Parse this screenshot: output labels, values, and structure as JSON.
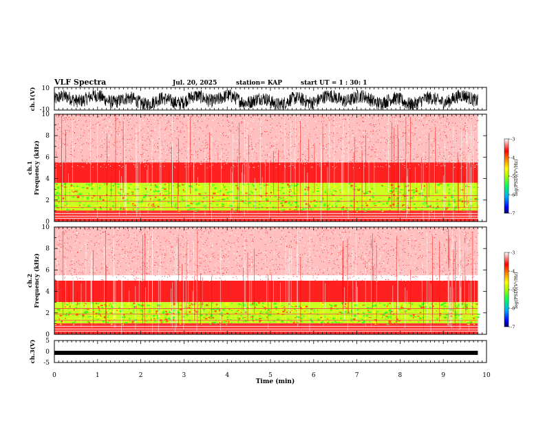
{
  "header": {
    "title": "VLF Spectra",
    "date": "Jul. 20, 2025",
    "station": "station= KAP",
    "start": "start  UT =   1 : 30: 1"
  },
  "colors": {
    "spec_high": "#ff0000",
    "spec_mid": "#ffff00",
    "spec_low": "#00ff00",
    "background": "#ffffff"
  },
  "chart_data": [
    {
      "type": "line",
      "id": "ch1_wave",
      "ylabel": "ch.1(V)",
      "ylim": [
        -10,
        10
      ],
      "yticks": [
        "10",
        "-10"
      ],
      "xlim": [
        0,
        10
      ],
      "description_level": "noise band roughly -8 to 6 V"
    },
    {
      "type": "heatmap",
      "id": "ch1_spec",
      "ylabel_top": "ch.1",
      "ylabel": "Frequency (kHz)",
      "ylim": [
        0,
        10
      ],
      "yticks": [
        "0",
        "2",
        "4",
        "6",
        "8",
        "10"
      ],
      "xlim": [
        0,
        9.8
      ],
      "colorbar_label": "log(PSD)(V²/Hz)",
      "colorbar_ticks": [
        "-3",
        "-4",
        "-5",
        "-6",
        "-7"
      ],
      "bands": [
        {
          "from_khz": 0.0,
          "to_khz": 1.0,
          "level": "red-white lines"
        },
        {
          "from_khz": 1.0,
          "to_khz": 3.6,
          "level": "green-yellow"
        },
        {
          "from_khz": 3.6,
          "to_khz": 5.5,
          "level": "red"
        },
        {
          "from_khz": 5.5,
          "to_khz": 10.0,
          "level": "light red"
        }
      ]
    },
    {
      "type": "heatmap",
      "id": "ch2_spec",
      "ylabel_top": "ch.2",
      "ylabel": "Frequency (kHz)",
      "ylim": [
        0,
        10
      ],
      "yticks": [
        "0",
        "2",
        "4",
        "6",
        "8",
        "10"
      ],
      "xlim": [
        0,
        9.8
      ],
      "colorbar_label": "log(PSD)(V²/Hz)",
      "colorbar_ticks": [
        "-3",
        "-4",
        "-5",
        "-6",
        "-7"
      ],
      "bands": [
        {
          "from_khz": 0.0,
          "to_khz": 1.0,
          "level": "red-white lines"
        },
        {
          "from_khz": 1.0,
          "to_khz": 3.0,
          "level": "green-yellow"
        },
        {
          "from_khz": 3.0,
          "to_khz": 5.0,
          "level": "red"
        },
        {
          "from_khz": 5.0,
          "to_khz": 10.0,
          "level": "light red"
        }
      ]
    },
    {
      "type": "line",
      "id": "ch3_wave",
      "ylabel": "ch.3(V)",
      "ylim": [
        -5,
        5
      ],
      "yticks": [
        "5",
        "0",
        "-5"
      ],
      "xlim": [
        0,
        10
      ],
      "level": -0.6
    }
  ],
  "x_axis": {
    "label": "Time (min)",
    "ticks": [
      "0",
      "1",
      "2",
      "3",
      "4",
      "5",
      "6",
      "7",
      "8",
      "9",
      "10"
    ],
    "range": [
      0,
      10
    ]
  }
}
